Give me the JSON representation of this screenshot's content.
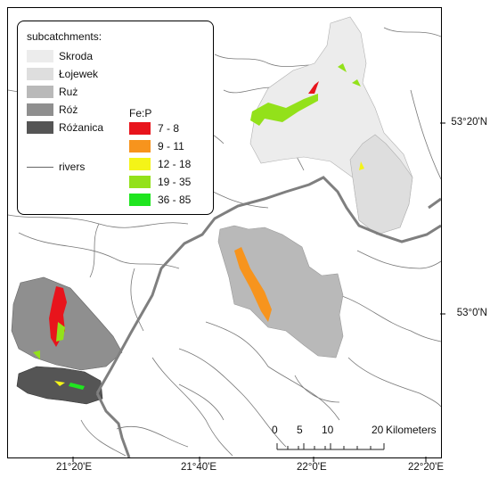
{
  "legend": {
    "subcatchments_title": "subcatchments:",
    "subcatchments": [
      {
        "name": "Skroda",
        "color": "#ececec"
      },
      {
        "name": "Łojewek",
        "color": "#dedede"
      },
      {
        "name": "Ruż",
        "color": "#b9b9b9"
      },
      {
        "name": "Róż",
        "color": "#8f8f8f"
      },
      {
        "name": "Różanica",
        "color": "#555555"
      }
    ],
    "rivers_label": "rivers",
    "fep_title": "Fe:P",
    "fep_classes": [
      {
        "range": "7 - 8",
        "color": "#e8141c"
      },
      {
        "range": "9 - 11",
        "color": "#f7941d"
      },
      {
        "range": "12 - 18",
        "color": "#f4f418"
      },
      {
        "range": "19 - 35",
        "color": "#93e11a"
      },
      {
        "range": "36 - 85",
        "color": "#1fe51f"
      }
    ]
  },
  "graticule": {
    "lat_labels": [
      "53°20'N",
      "53°0'N"
    ],
    "lon_labels": [
      "21°20'E",
      "21°40'E",
      "22°0'E",
      "22°20'E"
    ]
  },
  "scale_bar": {
    "labels": [
      "0",
      "5",
      "10",
      "20"
    ],
    "units": "Kilometers"
  }
}
